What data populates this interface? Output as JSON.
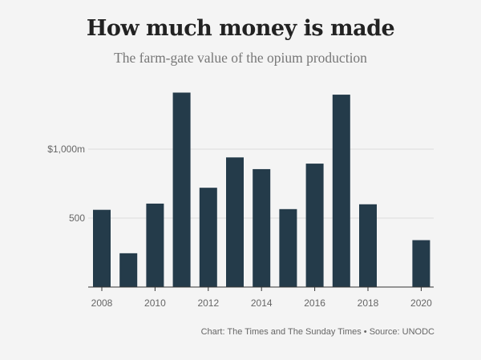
{
  "chart_data": {
    "type": "bar",
    "title": "How much money is made",
    "subtitle": "The farm-gate value of the opium production",
    "categories": [
      "2008",
      "2009",
      "2010",
      "2011",
      "2012",
      "2013",
      "2014",
      "2015",
      "2016",
      "2017",
      "2018",
      "2019",
      "2020"
    ],
    "values": [
      560,
      245,
      605,
      1410,
      720,
      940,
      855,
      565,
      895,
      1395,
      600,
      null,
      340
    ],
    "x_tick_labels": [
      "2008",
      "2010",
      "2012",
      "2014",
      "2016",
      "2018",
      "2020"
    ],
    "y_ticks": [
      {
        "value": 500,
        "label": "500"
      },
      {
        "value": 1000,
        "label": "$1,000m"
      }
    ],
    "ylim": [
      0,
      1500
    ],
    "grid": true,
    "bar_color": "#243b4a",
    "highlight_color": "#ffee00",
    "xlabel": "",
    "ylabel": ""
  },
  "footer": {
    "credit": "Chart: The Times and The Sunday Times • Source: UNODC"
  }
}
